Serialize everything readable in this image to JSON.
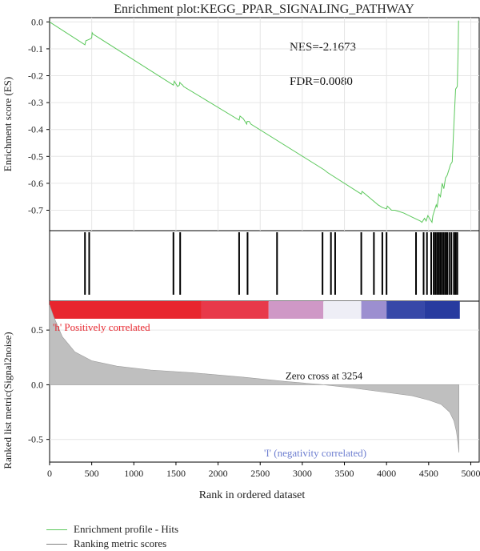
{
  "chart_data": {
    "type": "line",
    "title": "Enrichment plot:KEGG_PPAR_SIGNALING_PATHWAY",
    "xlabel": "Rank in ordered dataset",
    "x_ticks": [
      "0",
      "500",
      "1000",
      "1500",
      "2000",
      "2500",
      "3000",
      "3500",
      "4000",
      "4500",
      "5000"
    ],
    "xlim": [
      0,
      5100
    ],
    "enrichment": {
      "ylabel": "Enrichment score (ES)",
      "y_ticks": [
        "0.0",
        "-0.1",
        "-0.2",
        "-0.3",
        "-0.4",
        "-0.5",
        "-0.6",
        "-0.7"
      ],
      "ylim": [
        -0.77,
        0.01
      ],
      "nes_label": "NES=-2.1673",
      "fdr_label": "FDR=0.0080",
      "series": {
        "color": "#5cc85c",
        "x": [
          0,
          420,
          430,
          470,
          500,
          505,
          515,
          1470,
          1480,
          1520,
          1540,
          1545,
          1560,
          1580,
          1590,
          2250,
          2260,
          2300,
          2340,
          2345,
          2370,
          2390,
          3260,
          3300,
          3700,
          3710,
          3900,
          3950,
          4000,
          4010,
          4060,
          4100,
          4200,
          4300,
          4400,
          4420,
          4450,
          4470,
          4490,
          4510,
          4540,
          4550,
          4570,
          4590,
          4600,
          4620,
          4640,
          4660,
          4680,
          4700,
          4720,
          4740,
          4760,
          4780,
          4800,
          4820,
          4840,
          4850,
          4855
        ],
        "y": [
          0.0,
          -0.085,
          -0.07,
          -0.065,
          -0.06,
          -0.04,
          -0.045,
          -0.235,
          -0.22,
          -0.24,
          -0.235,
          -0.225,
          -0.23,
          -0.235,
          -0.24,
          -0.365,
          -0.35,
          -0.36,
          -0.38,
          -0.37,
          -0.37,
          -0.38,
          -0.55,
          -0.56,
          -0.64,
          -0.63,
          -0.68,
          -0.69,
          -0.695,
          -0.685,
          -0.7,
          -0.7,
          -0.71,
          -0.725,
          -0.74,
          -0.745,
          -0.73,
          -0.74,
          -0.72,
          -0.73,
          -0.745,
          -0.72,
          -0.7,
          -0.68,
          -0.69,
          -0.64,
          -0.65,
          -0.6,
          -0.62,
          -0.58,
          -0.57,
          -0.55,
          -0.53,
          -0.52,
          -0.38,
          -0.25,
          -0.24,
          -0.1,
          0.005
        ]
      }
    },
    "hits": {
      "positions": [
        420,
        470,
        1470,
        1550,
        2250,
        2350,
        2700,
        3240,
        3340,
        3390,
        3700,
        3850,
        3950,
        4000,
        4350,
        4440,
        4480,
        4530,
        4560,
        4580,
        4600,
        4620,
        4640,
        4660,
        4680,
        4700,
        4720,
        4745,
        4770,
        4800,
        4820,
        4840
      ]
    },
    "heatmap": {
      "segments": [
        {
          "from": 0,
          "to": 1800,
          "color": "#e8262e"
        },
        {
          "from": 1800,
          "to": 2600,
          "color": "#e8394a"
        },
        {
          "from": 2600,
          "to": 3250,
          "color": "#cf98c6"
        },
        {
          "from": 3250,
          "to": 3700,
          "color": "#eeeef6"
        },
        {
          "from": 3700,
          "to": 4000,
          "color": "#9c8fd0"
        },
        {
          "from": 4000,
          "to": 4450,
          "color": "#3748a8"
        },
        {
          "from": 4450,
          "to": 4870,
          "color": "#283b9f"
        }
      ]
    },
    "ranked": {
      "ylabel": "Ranked list metric(Signal2noise)",
      "y_ticks": [
        "0.5",
        "0.0",
        "-0.5"
      ],
      "ylim": [
        -0.7,
        0.75
      ],
      "pos_label": "'h' Positively correlated",
      "neg_label": "'I' (negativity correlated)",
      "zero_cross_label": "Zero cross at 3254",
      "fill": "#bfbfbf",
      "pos_color": "#e8262e",
      "neg_color": "#6e7fd0",
      "profile_x": [
        0,
        50,
        150,
        300,
        500,
        800,
        1200,
        1700,
        2300,
        2800,
        3254,
        3600,
        4000,
        4300,
        4500,
        4650,
        4750,
        4800,
        4830,
        4850,
        4860
      ],
      "profile_y": [
        0.73,
        0.62,
        0.44,
        0.3,
        0.22,
        0.17,
        0.135,
        0.11,
        0.07,
        0.03,
        0.0,
        -0.03,
        -0.07,
        -0.1,
        -0.14,
        -0.18,
        -0.25,
        -0.33,
        -0.43,
        -0.55,
        -0.62
      ]
    },
    "legend": [
      {
        "label": "Enrichment profile - Hits",
        "color": "#5cc85c"
      },
      {
        "label": "Ranking metric scores",
        "color": "#808080"
      }
    ]
  }
}
